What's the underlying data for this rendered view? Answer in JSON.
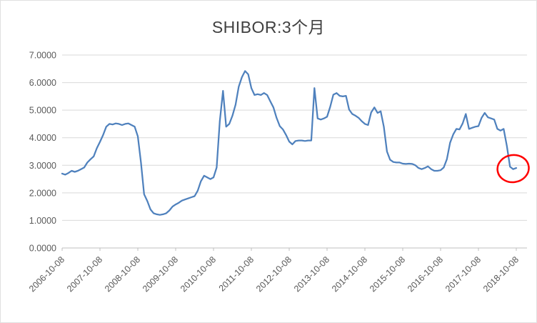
{
  "window": {
    "background": "#ffffff"
  },
  "chart_data": {
    "type": "line",
    "title": "SHIBOR:3个月",
    "legend": "none",
    "grid": "horizontal",
    "ylim": [
      0,
      7
    ],
    "y_tick_labels": [
      "0.0000",
      "1.0000",
      "2.0000",
      "3.0000",
      "4.0000",
      "5.0000",
      "6.0000",
      "7.0000"
    ],
    "x_tick_labels": [
      "2006-10-08",
      "2007-10-08",
      "2008-10-08",
      "2009-10-08",
      "2010-10-08",
      "2011-10-08",
      "2012-10-08",
      "2013-10-08",
      "2014-10-08",
      "2015-10-08",
      "2016-10-08",
      "2017-10-08",
      "2018-10-08"
    ],
    "colors": {
      "line": "#4f81bd",
      "gridline": "#d9d9d9",
      "axis_line": "#bfbfbf",
      "axis_label": "#595959",
      "title": "#404040",
      "annotation": "#ff0000"
    },
    "series": [
      {
        "name": "SHIBOR:3个月",
        "color": "#4f81bd",
        "values": [
          2.7,
          2.66,
          2.72,
          2.8,
          2.76,
          2.8,
          2.86,
          2.92,
          3.1,
          3.22,
          3.32,
          3.62,
          3.85,
          4.1,
          4.4,
          4.5,
          4.48,
          4.52,
          4.5,
          4.46,
          4.5,
          4.52,
          4.46,
          4.4,
          4.05,
          3.1,
          1.95,
          1.7,
          1.4,
          1.26,
          1.22,
          1.2,
          1.22,
          1.26,
          1.36,
          1.5,
          1.58,
          1.64,
          1.72,
          1.76,
          1.8,
          1.84,
          1.88,
          2.08,
          2.42,
          2.62,
          2.56,
          2.5,
          2.56,
          2.92,
          4.6,
          5.7,
          4.4,
          4.5,
          4.8,
          5.2,
          5.85,
          6.2,
          6.42,
          6.3,
          5.8,
          5.55,
          5.58,
          5.55,
          5.62,
          5.55,
          5.32,
          5.1,
          4.72,
          4.42,
          4.3,
          4.1,
          3.86,
          3.76,
          3.88,
          3.9,
          3.9,
          3.88,
          3.9,
          3.9,
          5.8,
          4.7,
          4.66,
          4.7,
          4.76,
          5.12,
          5.56,
          5.62,
          5.52,
          5.5,
          5.52,
          5.02,
          4.86,
          4.8,
          4.72,
          4.6,
          4.5,
          4.46,
          4.92,
          5.1,
          4.9,
          4.96,
          4.4,
          3.5,
          3.2,
          3.12,
          3.1,
          3.1,
          3.06,
          3.05,
          3.06,
          3.05,
          3.0,
          2.9,
          2.86,
          2.9,
          2.96,
          2.86,
          2.8,
          2.8,
          2.82,
          2.92,
          3.22,
          3.82,
          4.12,
          4.32,
          4.3,
          4.52,
          4.86,
          4.32,
          4.36,
          4.4,
          4.42,
          4.72,
          4.9,
          4.74,
          4.7,
          4.66,
          4.32,
          4.26,
          4.32,
          3.7,
          2.95,
          2.86,
          2.9
        ]
      }
    ],
    "annotation": {
      "shape": "ellipse",
      "color": "#ff0000",
      "around_value": 2.88
    }
  }
}
